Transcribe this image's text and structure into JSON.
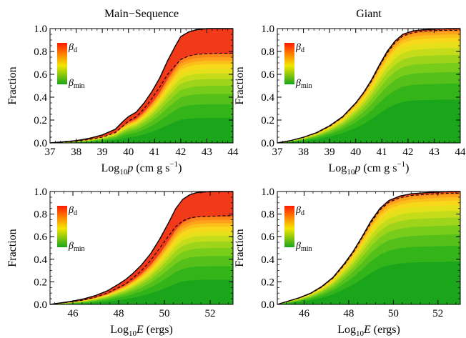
{
  "colors": {
    "band_low": "#1a9e1a",
    "band_high": "#ff2200",
    "outline": "#000000"
  },
  "chart_data": [
    {
      "id": "ms-p",
      "type": "area",
      "title": "Main−Sequence",
      "xlabel_base": "Log",
      "xlabel_sub": "10",
      "xlabel_var": "p",
      "xlabel_unit_pre": " (cm g s",
      "xlabel_sup": "−1",
      "xlabel_unit_post": ")",
      "ylabel": "Fraction",
      "xlim": [
        37,
        44
      ],
      "ylim": [
        0,
        1
      ],
      "xticks": [
        37,
        38,
        39,
        40,
        41,
        42,
        43,
        44
      ],
      "xtick_labels": [
        "37",
        "38",
        "39",
        "40",
        "41",
        "42",
        "43",
        "44"
      ],
      "yticks": [
        0,
        0.2,
        0.4,
        0.6,
        0.8,
        1.0
      ],
      "ytick_labels": [
        "0.0",
        "0.2",
        "0.4",
        "0.6",
        "0.8",
        "1.0"
      ],
      "legend": {
        "top": "d",
        "bottom": "min",
        "symbol": "β"
      },
      "x": [
        37,
        37.5,
        38,
        38.5,
        39,
        39.5,
        39.8,
        40,
        40.3,
        40.6,
        40.9,
        41.2,
        41.5,
        41.8,
        42,
        42.3,
        42.6,
        43,
        43.5,
        44
      ],
      "y_top": [
        0,
        0.01,
        0.02,
        0.04,
        0.07,
        0.12,
        0.19,
        0.23,
        0.27,
        0.35,
        0.45,
        0.57,
        0.72,
        0.85,
        0.93,
        0.97,
        0.99,
        1.0,
        1.0,
        1.0
      ],
      "y_dashed": [
        0,
        0.008,
        0.015,
        0.03,
        0.05,
        0.09,
        0.15,
        0.19,
        0.23,
        0.3,
        0.39,
        0.49,
        0.6,
        0.68,
        0.73,
        0.76,
        0.775,
        0.78,
        0.785,
        0.785
      ],
      "band_fractions": [
        0.22,
        0.34,
        0.43,
        0.5,
        0.56,
        0.61,
        0.65,
        0.69,
        0.72,
        0.75,
        0.78,
        1.0
      ],
      "band_colors": [
        "#1aa51a",
        "#33b51a",
        "#55c01a",
        "#78cc1a",
        "#9ed41a",
        "#c4dc1a",
        "#e6e01a",
        "#f7d81a",
        "#fcc01a",
        "#fda21a",
        "#fd861a",
        "#f03a1a"
      ]
    },
    {
      "id": "giant-p",
      "type": "area",
      "title": "Giant",
      "xlabel_base": "Log",
      "xlabel_sub": "10",
      "xlabel_var": "p",
      "xlabel_unit_pre": " (cm g s",
      "xlabel_sup": "−1",
      "xlabel_unit_post": ")",
      "ylabel": "Fraction",
      "xlim": [
        37,
        44
      ],
      "ylim": [
        0,
        1
      ],
      "xticks": [
        37,
        38,
        39,
        40,
        41,
        42,
        43,
        44
      ],
      "xtick_labels": [
        "37",
        "38",
        "39",
        "40",
        "41",
        "42",
        "43",
        "44"
      ],
      "yticks": [
        0,
        0.2,
        0.4,
        0.6,
        0.8,
        1.0
      ],
      "ytick_labels": [
        "0.0",
        "0.2",
        "0.4",
        "0.6",
        "0.8",
        "1.0"
      ],
      "legend": {
        "top": "d",
        "bottom": "min",
        "symbol": "β"
      },
      "x": [
        37,
        37.5,
        38,
        38.5,
        39,
        39.5,
        40,
        40.3,
        40.6,
        40.9,
        41.2,
        41.5,
        41.8,
        42.2,
        42.6,
        43,
        43.5,
        44
      ],
      "y_top": [
        0,
        0.02,
        0.05,
        0.09,
        0.15,
        0.23,
        0.35,
        0.44,
        0.55,
        0.68,
        0.8,
        0.89,
        0.95,
        0.98,
        0.99,
        0.995,
        1.0,
        1.0
      ],
      "y_dashed": [
        0,
        0.02,
        0.048,
        0.087,
        0.145,
        0.225,
        0.345,
        0.435,
        0.54,
        0.67,
        0.785,
        0.875,
        0.935,
        0.965,
        0.978,
        0.982,
        0.985,
        0.985
      ],
      "band_fractions": [
        0.38,
        0.52,
        0.62,
        0.7,
        0.77,
        0.83,
        0.88,
        0.92,
        0.95,
        0.975,
        0.99,
        1.0
      ],
      "band_colors": [
        "#1aa51a",
        "#33b51a",
        "#55c01a",
        "#78cc1a",
        "#9ed41a",
        "#c4dc1a",
        "#e6e01a",
        "#f7d81a",
        "#fcc01a",
        "#fda21a",
        "#fd861a",
        "#f03a1a"
      ]
    },
    {
      "id": "ms-e",
      "type": "area",
      "title": "",
      "xlabel_base": "Log",
      "xlabel_sub": "10",
      "xlabel_var": "E",
      "xlabel_unit_pre": " (ergs)",
      "xlabel_sup": "",
      "xlabel_unit_post": "",
      "ylabel": "Fraction",
      "xlim": [
        45,
        53
      ],
      "ylim": [
        0,
        1
      ],
      "xticks": [
        46,
        48,
        50,
        52
      ],
      "xtick_labels": [
        "46",
        "48",
        "50",
        "52"
      ],
      "yticks": [
        0,
        0.2,
        0.4,
        0.6,
        0.8,
        1.0
      ],
      "ytick_labels": [
        "0.0",
        "0.2",
        "0.4",
        "0.6",
        "0.8",
        "1.0"
      ],
      "legend": {
        "top": "d",
        "bottom": "min",
        "symbol": "β"
      },
      "x": [
        45,
        45.5,
        46,
        46.5,
        47,
        47.5,
        48,
        48.3,
        48.6,
        49,
        49.4,
        49.8,
        50.2,
        50.5,
        50.8,
        51.1,
        51.4,
        52,
        52.5,
        53
      ],
      "y_top": [
        0,
        0.015,
        0.03,
        0.05,
        0.08,
        0.12,
        0.18,
        0.22,
        0.27,
        0.35,
        0.45,
        0.58,
        0.73,
        0.85,
        0.93,
        0.97,
        0.99,
        1.0,
        1.0,
        1.0
      ],
      "y_dashed": [
        0,
        0.012,
        0.025,
        0.04,
        0.065,
        0.1,
        0.15,
        0.18,
        0.23,
        0.3,
        0.39,
        0.5,
        0.61,
        0.69,
        0.74,
        0.765,
        0.775,
        0.78,
        0.785,
        0.785
      ],
      "band_fractions": [
        0.22,
        0.34,
        0.43,
        0.5,
        0.56,
        0.61,
        0.65,
        0.69,
        0.72,
        0.75,
        0.78,
        1.0
      ],
      "band_colors": [
        "#1aa51a",
        "#33b51a",
        "#55c01a",
        "#78cc1a",
        "#9ed41a",
        "#c4dc1a",
        "#e6e01a",
        "#f7d81a",
        "#fcc01a",
        "#fda21a",
        "#fd861a",
        "#f03a1a"
      ]
    },
    {
      "id": "giant-e",
      "type": "area",
      "title": "",
      "xlabel_base": "Log",
      "xlabel_sub": "10",
      "xlabel_var": "E",
      "xlabel_unit_pre": " (ergs)",
      "xlabel_sup": "",
      "xlabel_unit_post": "",
      "ylabel": "Fraction",
      "xlim": [
        44.8,
        53
      ],
      "ylim": [
        0,
        1
      ],
      "xticks": [
        46,
        48,
        50,
        52
      ],
      "xtick_labels": [
        "46",
        "48",
        "50",
        "52"
      ],
      "yticks": [
        0,
        0.2,
        0.4,
        0.6,
        0.8,
        1.0
      ],
      "ytick_labels": [
        "0.0",
        "0.2",
        "0.4",
        "0.6",
        "0.8",
        "1.0"
      ],
      "legend": {
        "top": "d",
        "bottom": "min",
        "symbol": "β"
      },
      "x": [
        44.8,
        45.3,
        45.8,
        46.3,
        46.8,
        47.3,
        47.8,
        48.2,
        48.6,
        49,
        49.4,
        49.8,
        50.3,
        50.8,
        51.5,
        52,
        52.5,
        53
      ],
      "y_top": [
        0,
        0.03,
        0.06,
        0.1,
        0.16,
        0.24,
        0.36,
        0.47,
        0.6,
        0.74,
        0.85,
        0.92,
        0.96,
        0.98,
        0.99,
        0.995,
        1.0,
        1.0
      ],
      "y_dashed": [
        0,
        0.028,
        0.058,
        0.097,
        0.155,
        0.235,
        0.35,
        0.46,
        0.59,
        0.725,
        0.835,
        0.905,
        0.945,
        0.965,
        0.975,
        0.98,
        0.985,
        0.985
      ],
      "band_fractions": [
        0.38,
        0.52,
        0.62,
        0.7,
        0.77,
        0.83,
        0.88,
        0.92,
        0.95,
        0.975,
        0.99,
        1.0
      ],
      "band_colors": [
        "#1aa51a",
        "#33b51a",
        "#55c01a",
        "#78cc1a",
        "#9ed41a",
        "#c4dc1a",
        "#e6e01a",
        "#f7d81a",
        "#fcc01a",
        "#fda21a",
        "#fd861a",
        "#f03a1a"
      ]
    }
  ]
}
